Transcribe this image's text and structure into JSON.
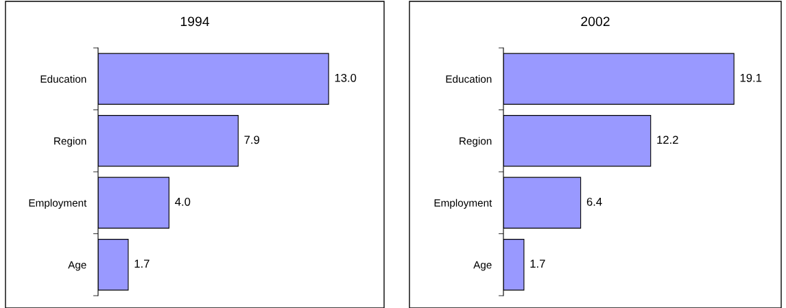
{
  "chart_data": [
    {
      "type": "bar",
      "orientation": "horizontal",
      "title": "1994",
      "categories": [
        "Education",
        "Region",
        "Employment",
        "Age"
      ],
      "values": [
        13.0,
        7.9,
        4.0,
        1.7
      ],
      "value_labels": [
        "13.0",
        "7.9",
        "4.0",
        "1.7"
      ],
      "color": "#9999ff",
      "grid": false,
      "legend": false
    },
    {
      "type": "bar",
      "orientation": "horizontal",
      "title": "2002",
      "categories": [
        "Education",
        "Region",
        "Employment",
        "Age"
      ],
      "values": [
        19.1,
        12.2,
        6.4,
        1.7
      ],
      "value_labels": [
        "19.1",
        "12.2",
        "6.4",
        "1.7"
      ],
      "color": "#9999ff",
      "grid": false,
      "legend": false
    }
  ]
}
